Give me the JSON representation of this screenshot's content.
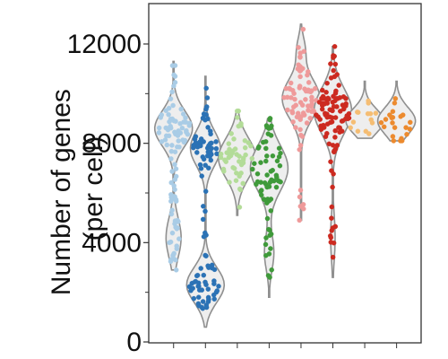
{
  "chart_data": {
    "type": "violin-strip",
    "title": "",
    "xlabel": "",
    "ylabel_lines": [
      "Number of genes",
      "(per cell)"
    ],
    "ylim": [
      0,
      13500
    ],
    "yticks": [
      0,
      4000,
      8000,
      12000
    ],
    "yticklabels": [
      "0",
      "4000",
      "8000",
      "12000"
    ],
    "y_minor_ticks": [
      2000,
      6000,
      10000
    ],
    "grid": false,
    "legend": "none",
    "violin_style": {
      "fill": "#eeeeee",
      "stroke": "#8f8f8f"
    },
    "series": [
      {
        "color": "#a9cce6",
        "ymin": 2900,
        "ymax": 11300,
        "median": 8300,
        "modes": [
          {
            "y": 8600,
            "sd": 700,
            "w": 1.0
          },
          {
            "y": 4200,
            "sd": 800,
            "w": 0.4
          }
        ],
        "clusters": [
          {
            "n": 55,
            "mu": 8600,
            "sd": 650
          },
          {
            "n": 30,
            "mu": 4300,
            "sd": 900
          },
          {
            "n": 10,
            "mu": 6500,
            "sd": 600
          },
          {
            "n": 5,
            "mu": 10400,
            "sd": 400
          }
        ]
      },
      {
        "color": "#2b72b5",
        "ymin": 600,
        "ymax": 10700,
        "median": 7500,
        "modes": [
          {
            "y": 7800,
            "sd": 700,
            "w": 0.8
          },
          {
            "y": 2300,
            "sd": 700,
            "w": 1.0
          }
        ],
        "clusters": [
          {
            "n": 45,
            "mu": 7700,
            "sd": 700
          },
          {
            "n": 45,
            "mu": 2300,
            "sd": 650
          },
          {
            "n": 6,
            "mu": 9500,
            "sd": 400
          },
          {
            "n": 6,
            "mu": 5200,
            "sd": 700
          }
        ]
      },
      {
        "color": "#b3dc98",
        "ymin": 5100,
        "ymax": 9300,
        "median": 7300,
        "modes": [
          {
            "y": 7400,
            "sd": 800,
            "w": 1.0
          }
        ],
        "clusters": [
          {
            "n": 50,
            "mu": 7400,
            "sd": 800
          }
        ]
      },
      {
        "color": "#3f9a3a",
        "ymin": 1800,
        "ymax": 9000,
        "median": 6600,
        "modes": [
          {
            "y": 7000,
            "sd": 900,
            "w": 1.0
          },
          {
            "y": 3600,
            "sd": 700,
            "w": 0.25
          }
        ],
        "clusters": [
          {
            "n": 60,
            "mu": 6900,
            "sd": 1000
          },
          {
            "n": 10,
            "mu": 3800,
            "sd": 900
          }
        ]
      },
      {
        "color": "#ef9a9a",
        "ymin": 4900,
        "ymax": 12800,
        "median": 9700,
        "modes": [
          {
            "y": 9800,
            "sd": 800,
            "w": 1.0
          },
          {
            "y": 11800,
            "sd": 500,
            "w": 0.2
          }
        ],
        "clusters": [
          {
            "n": 70,
            "mu": 9900,
            "sd": 950
          },
          {
            "n": 6,
            "mu": 5800,
            "sd": 700
          }
        ]
      },
      {
        "color": "#cc2a20",
        "ymin": 2600,
        "ymax": 11900,
        "median": 9000,
        "modes": [
          {
            "y": 9300,
            "sd": 900,
            "w": 1.0
          },
          {
            "y": 4200,
            "sd": 900,
            "w": 0.12
          }
        ],
        "clusters": [
          {
            "n": 90,
            "mu": 9300,
            "sd": 1100
          },
          {
            "n": 10,
            "mu": 4200,
            "sd": 900
          }
        ]
      },
      {
        "color": "#f5bd73",
        "ymin": 8200,
        "ymax": 10500,
        "median": 8900,
        "modes": [
          {
            "y": 8900,
            "sd": 500,
            "w": 1.0
          }
        ],
        "clusters": [
          {
            "n": 14,
            "mu": 8900,
            "sd": 450
          }
        ]
      },
      {
        "color": "#ec8a2e",
        "ymin": 8100,
        "ymax": 10500,
        "median": 8900,
        "modes": [
          {
            "y": 8900,
            "sd": 550,
            "w": 1.0
          }
        ],
        "clusters": [
          {
            "n": 22,
            "mu": 8900,
            "sd": 550
          }
        ]
      }
    ]
  }
}
